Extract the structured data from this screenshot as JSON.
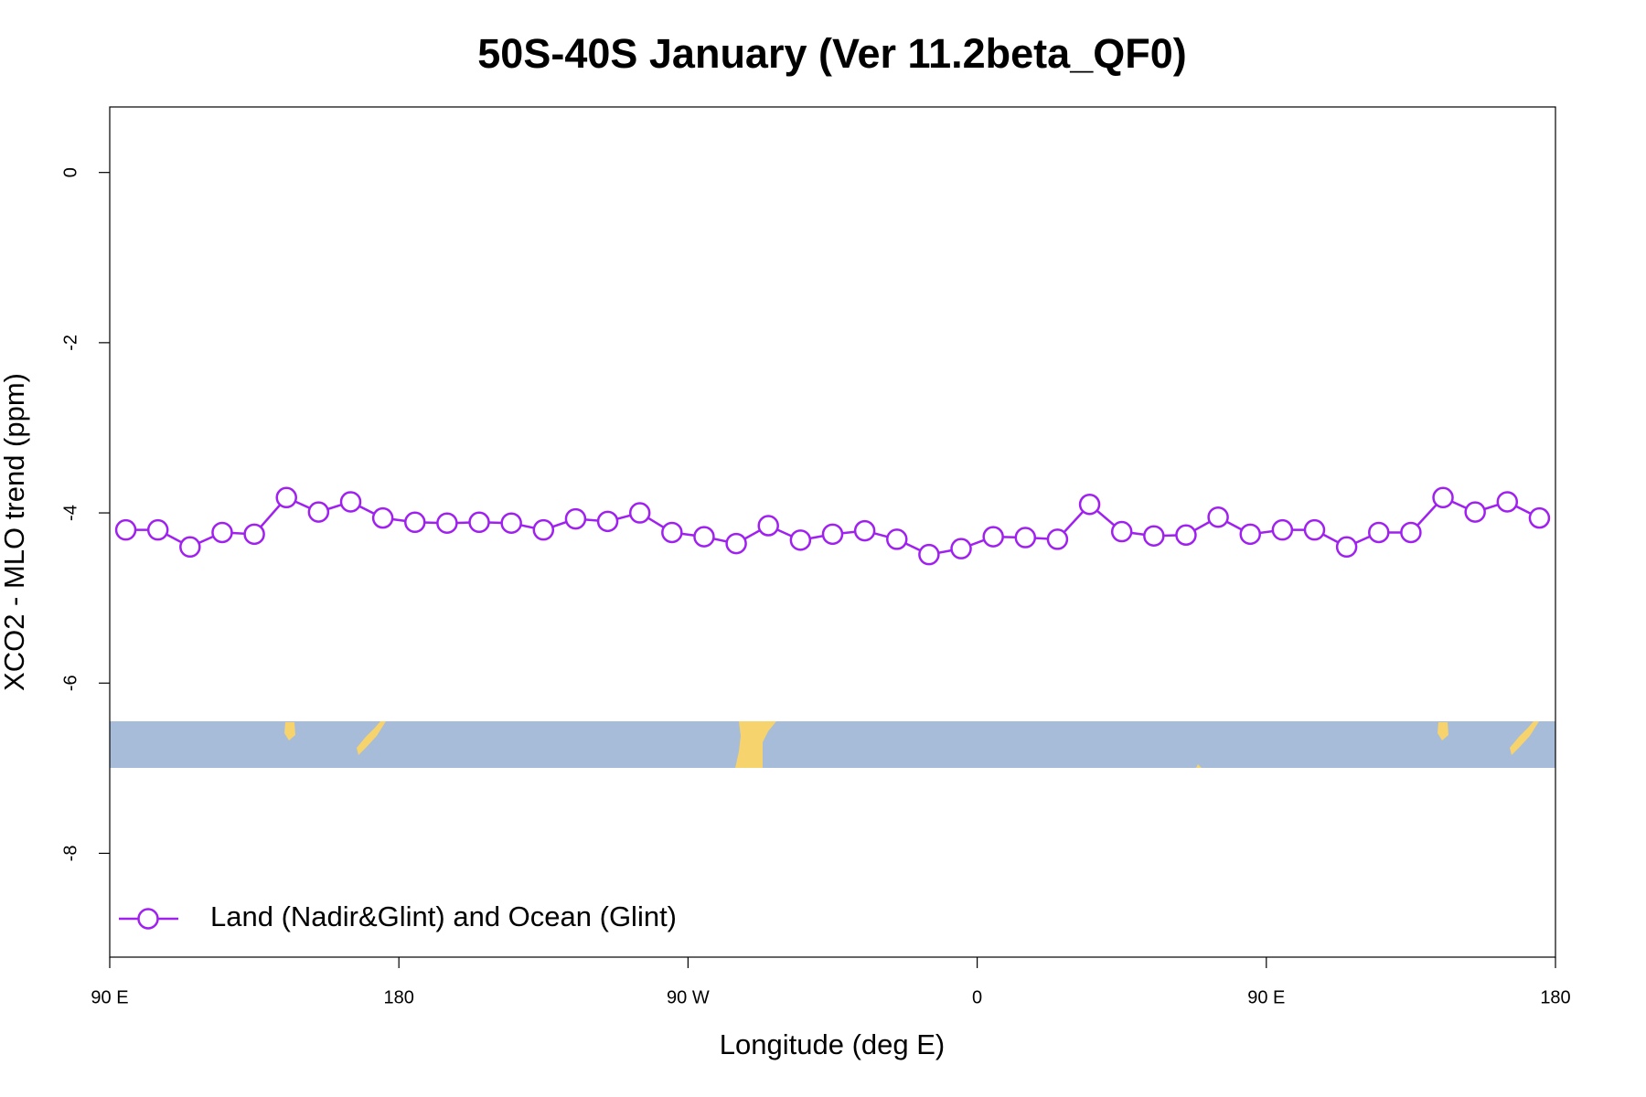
{
  "chart_data": {
    "type": "line",
    "title": "50S-40S January (Ver 11.2beta_QF0)",
    "x_label": "Longitude (deg E)",
    "y_label": "XCO2 - MLO trend (ppm)",
    "x": [
      95,
      105,
      115,
      125,
      135,
      145,
      155,
      165,
      175,
      185,
      195,
      205,
      215,
      225,
      235,
      245,
      255,
      265,
      275,
      285,
      295,
      305,
      315,
      325,
      335,
      345,
      355,
      365,
      375,
      385,
      395,
      405,
      415,
      425,
      435,
      445,
      455,
      465,
      475,
      485,
      495,
      505,
      515,
      525,
      535
    ],
    "series": [
      {
        "name": "Land (Nadir&Glint) and Ocean (Glint)",
        "color": "#a020f0",
        "values": [
          -4.2,
          -4.2,
          -4.4,
          -4.23,
          -4.25,
          -3.82,
          -3.99,
          -3.87,
          -4.06,
          -4.11,
          -4.12,
          -4.11,
          -4.12,
          -4.2,
          -4.07,
          -4.1,
          -4.0,
          -4.23,
          -4.28,
          -4.36,
          -4.15,
          -4.32,
          -4.25,
          -4.21,
          -4.31,
          -4.49,
          -4.42,
          -4.28,
          -4.29,
          -4.31,
          -3.9,
          -4.22,
          -4.27,
          -4.26,
          -4.05,
          -4.25,
          -4.2,
          -4.2,
          -4.4,
          -4.23,
          -4.23,
          -3.82,
          -3.99,
          -3.87,
          -4.06
        ]
      }
    ],
    "xlim": [
      90,
      540
    ],
    "xticks": [
      {
        "value": 90,
        "label": "90 E"
      },
      180,
      {
        "value": 270,
        "label": "90 W"
      },
      {
        "value": 360,
        "label": "0"
      },
      {
        "value": 450,
        "label": "90 E"
      },
      {
        "value": 540,
        "label": "180"
      }
    ],
    "ylim": [
      -9.22,
      0.77
    ],
    "yticks": [
      0,
      -2,
      -4,
      -6,
      -8
    ],
    "legend": "bottomleft"
  }
}
